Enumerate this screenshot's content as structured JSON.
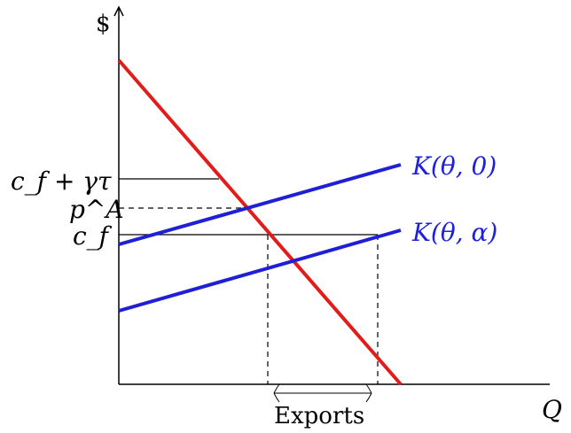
{
  "axes": {
    "y_label": "$",
    "x_label": "Q"
  },
  "price_levels": {
    "cf_plus_gamma_tau": "c_f + γτ",
    "pA": "p^A",
    "cf": "c_f"
  },
  "curves": {
    "k_theta_0": "K(θ, 0)",
    "k_theta_alpha": "K(θ, α)"
  },
  "annotations": {
    "exports": "Exports"
  },
  "colors": {
    "demand": "#e21b1b",
    "supply": "#1f1fd6",
    "supply_label": "#1f1fe0",
    "axis": "#000000"
  }
}
